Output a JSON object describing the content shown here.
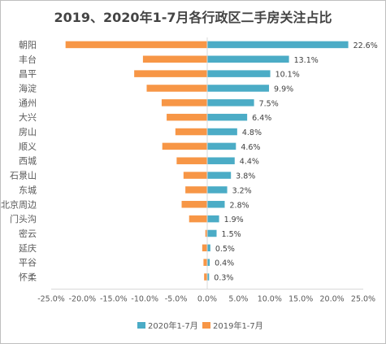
{
  "chart_data": {
    "type": "bar",
    "orientation": "horizontal",
    "title": "2019、2020年1-7月各行政区二手房关注占比",
    "categories": [
      "朝阳",
      "丰台",
      "昌平",
      "海淀",
      "通州",
      "大兴",
      "房山",
      "顺义",
      "西城",
      "石景山",
      "东城",
      "北京周边",
      "门头沟",
      "密云",
      "延庆",
      "平谷",
      "怀柔"
    ],
    "series": [
      {
        "name": "2020年1-7月",
        "color": "#4bacc6",
        "values": [
          0.226,
          0.131,
          0.101,
          0.099,
          0.075,
          0.064,
          0.048,
          0.046,
          0.044,
          0.038,
          0.032,
          0.028,
          0.019,
          0.015,
          0.005,
          0.004,
          0.003
        ],
        "labels": [
          "22.6%",
          "13.1%",
          "10.1%",
          "9.9%",
          "7.5%",
          "6.4%",
          "4.8%",
          "4.6%",
          "4.4%",
          "3.8%",
          "3.2%",
          "2.8%",
          "1.9%",
          "1.5%",
          "0.5%",
          "0.4%",
          "0.3%"
        ]
      },
      {
        "name": "2019年1-7月",
        "color": "#f79646",
        "values": [
          -0.227,
          -0.103,
          -0.117,
          -0.097,
          -0.073,
          -0.065,
          -0.051,
          -0.072,
          -0.049,
          -0.038,
          -0.035,
          -0.041,
          -0.029,
          -0.003,
          -0.008,
          -0.006,
          -0.005
        ]
      }
    ],
    "xlim": [
      -0.25,
      0.25
    ],
    "xticks": [
      -0.25,
      -0.2,
      -0.15,
      -0.1,
      -0.05,
      0,
      0.05,
      0.1,
      0.15,
      0.2,
      0.25
    ],
    "xtick_labels": [
      "-25.0%",
      "-20.0%",
      "-15.0%",
      "-10.0%",
      "-5.0%",
      "0.0%",
      "5.0%",
      "10.0%",
      "15.0%",
      "20.0%",
      "25.0%"
    ],
    "grid": false,
    "legend_position": "bottom"
  }
}
